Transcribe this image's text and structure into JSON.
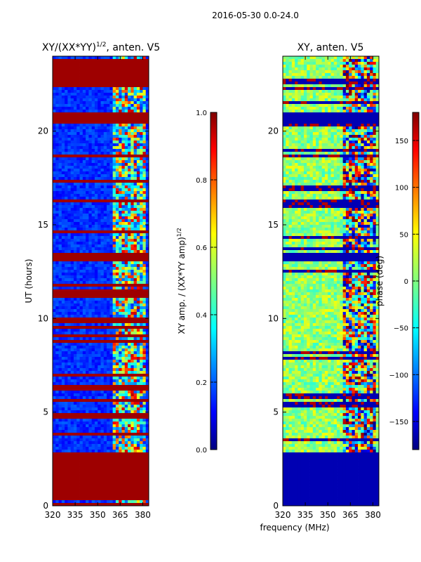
{
  "figure_title": "2016-05-30 0.0-24.0",
  "chart_data": [
    {
      "type": "heatmap",
      "panel": "left",
      "title": "XY/(XX*YY)",
      "title_exponent": "1/2",
      "title_suffix": ", anten. V5",
      "xlabel": "",
      "ylabel": "UT (hours)",
      "xlim": [
        320,
        384
      ],
      "ylim": [
        0,
        24
      ],
      "xticks": [
        320,
        335,
        350,
        365,
        380
      ],
      "yticks": [
        0,
        5,
        10,
        15,
        20
      ],
      "colorbar": {
        "label": "XY amp. / (XX*YY amp)",
        "label_exponent": "1/2",
        "range": [
          0.0,
          1.0
        ],
        "ticks": [
          "0.0",
          "0.2",
          "0.4",
          "0.6",
          "0.8",
          "1.0"
        ],
        "colormap": "jet"
      },
      "features": {
        "background": "low (~0.1-0.2)",
        "saturated_bands_hours": [
          [
            20.4,
            21.0
          ],
          [
            13.0,
            13.5
          ],
          [
            11.2,
            11.5
          ],
          [
            6.2,
            6.4
          ],
          [
            5.5,
            5.6
          ],
          [
            22.3,
            23.8
          ],
          [
            0.3,
            2.8
          ]
        ],
        "bright_frequency_region_mhz": [
          360,
          382
        ]
      }
    },
    {
      "type": "heatmap",
      "panel": "right",
      "title": "XY, anten. V5",
      "xlabel": "frequency (MHz)",
      "ylabel": "",
      "xlim": [
        320,
        384
      ],
      "ylim": [
        0,
        24
      ],
      "xticks": [
        320,
        335,
        350,
        365,
        380
      ],
      "yticks": [
        0,
        5,
        10,
        15,
        20
      ],
      "colorbar": {
        "label": "phase (deg)",
        "range": [
          -180,
          180
        ],
        "ticks": [
          "−150",
          "−100",
          "−50",
          "0",
          "50",
          "100",
          "150"
        ],
        "colormap": "jet"
      },
      "features": {
        "background": "phase ~0 (green)",
        "saturated_bands_hours": [
          [
            20.4,
            21.0
          ],
          [
            13.0,
            13.5
          ],
          [
            0.0,
            2.8
          ]
        ],
        "noisy_frequency_region_mhz": [
          360,
          382
        ]
      }
    }
  ]
}
